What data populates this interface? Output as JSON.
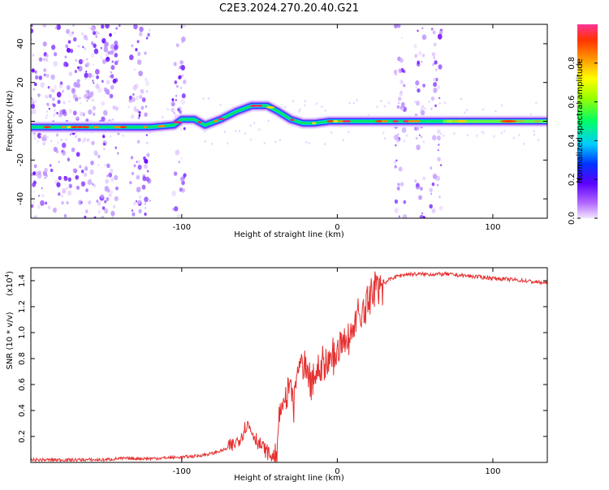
{
  "figure_title": "C2E3.2024.270.20.40.G21",
  "chart_data": [
    {
      "type": "heatmap",
      "xlabel": "Height of straight line (km)",
      "ylabel": "Frequency (Hz)",
      "xlim": [
        -197,
        135
      ],
      "ylim": [
        -50,
        50
      ],
      "x_ticks": [
        -100,
        0,
        100
      ],
      "y_ticks": [
        -40,
        -20,
        0,
        20,
        40
      ],
      "colorbar": {
        "label": "Normalized spectral amplitude",
        "range": [
          0,
          1
        ],
        "ticks": [
          "0.0",
          "0.2",
          "0.4",
          "0.6",
          "0.8"
        ]
      },
      "description_points": {
        "ridge": [
          [
            -197,
            -3
          ],
          [
            -175,
            -3
          ],
          [
            -140,
            -3
          ],
          [
            -120,
            -3
          ],
          [
            -105,
            -2
          ],
          [
            -100,
            1
          ],
          [
            -92,
            1
          ],
          [
            -85,
            -2
          ],
          [
            -75,
            1
          ],
          [
            -65,
            5
          ],
          [
            -55,
            8
          ],
          [
            -45,
            8
          ],
          [
            -38,
            5
          ],
          [
            -30,
            1
          ],
          [
            -22,
            -1
          ],
          [
            -15,
            -1
          ],
          [
            -5,
            0
          ],
          [
            0,
            0
          ],
          [
            10,
            0
          ],
          [
            20,
            0
          ],
          [
            35,
            0
          ],
          [
            50,
            0
          ],
          [
            60,
            0
          ],
          [
            70,
            0
          ],
          [
            100,
            0
          ],
          [
            135,
            0
          ]
        ],
        "noise_bands": [
          [
            -197,
            -140
          ],
          [
            -133,
            -120
          ],
          [
            -106,
            -98
          ],
          [
            37,
            44
          ],
          [
            50,
            56
          ],
          [
            60,
            67
          ]
        ]
      }
    },
    {
      "type": "line",
      "xlabel": "Height of straight line (km)",
      "ylabel": "SNR (10 * v/v)",
      "y_multiplier": "(x10",
      "y_multiplier_exp": "4",
      "xlim": [
        -197,
        135
      ],
      "ylim": [
        0,
        1.5
      ],
      "x_ticks": [
        -100,
        0,
        100
      ],
      "y_ticks": [
        "0.2",
        "0.4",
        "0.6",
        "0.8",
        "1.0",
        "1.2",
        "1.4"
      ],
      "series": [
        {
          "color": "#e53030",
          "x": [
            -197,
            -170,
            -150,
            -140,
            -120,
            -100,
            -90,
            -80,
            -72,
            -66,
            -62,
            -58,
            -54,
            -50,
            -45,
            -42,
            -40,
            -38,
            -35,
            -32,
            -30,
            -28,
            -26,
            -22,
            -18,
            -14,
            -10,
            -6,
            -2,
            2,
            6,
            10,
            14,
            18,
            22,
            26,
            30,
            35,
            40,
            45,
            50,
            60,
            70,
            80,
            90,
            100,
            110,
            120,
            135
          ],
          "y": [
            0.02,
            0.02,
            0.02,
            0.03,
            0.03,
            0.04,
            0.05,
            0.07,
            0.1,
            0.14,
            0.2,
            0.3,
            0.22,
            0.14,
            0.08,
            0.04,
            0.05,
            0.2,
            0.45,
            0.5,
            0.6,
            0.45,
            0.65,
            0.75,
            0.6,
            0.7,
            0.8,
            0.75,
            0.85,
            0.9,
            0.95,
            1.05,
            1.1,
            1.2,
            1.28,
            1.33,
            1.38,
            1.42,
            1.44,
            1.45,
            1.45,
            1.45,
            1.45,
            1.44,
            1.43,
            1.42,
            1.41,
            1.4,
            1.38
          ]
        }
      ]
    }
  ]
}
